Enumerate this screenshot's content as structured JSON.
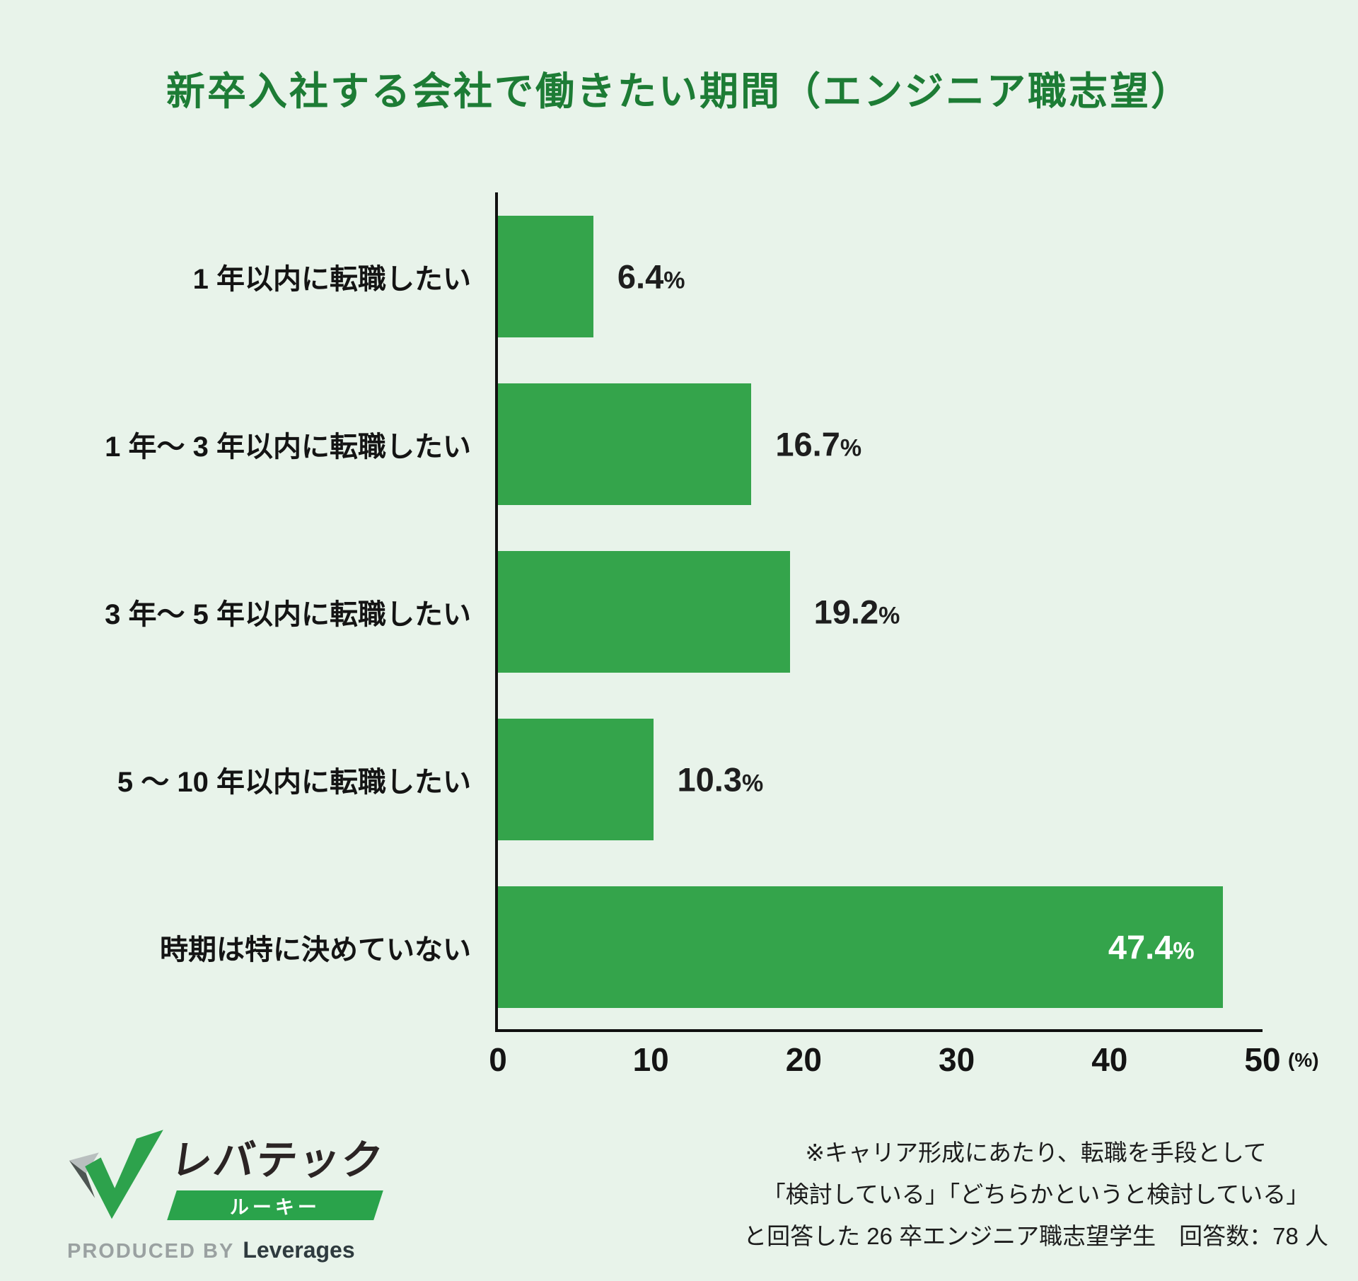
{
  "title": "新卒入社する会社で働きたい期間（エンジニア職志望）",
  "chart_data": {
    "type": "bar",
    "orientation": "horizontal",
    "categories": [
      "1 年以内に転職したい",
      "1 年～ 3 年以内に転職したい",
      "3 年～ 5 年以内に転職したい",
      "5 ～ 10 年以内に転職したい",
      "時期は特に決めていない"
    ],
    "values": [
      6.4,
      16.7,
      19.2,
      10.3,
      47.4
    ],
    "value_labels": [
      "6.4",
      "16.7",
      "19.2",
      "10.3",
      "47.4"
    ],
    "value_suffix": "%",
    "value_label_inside": [
      false,
      false,
      false,
      false,
      true
    ],
    "xlim": [
      0,
      50
    ],
    "x_ticks": [
      0,
      10,
      20,
      30,
      40,
      50
    ],
    "x_unit": "(%)",
    "bar_color": "#34a44b",
    "grid": false,
    "legend": false
  },
  "footer": {
    "logo": {
      "brand": "レバテック",
      "sub_brand": "ルーキー",
      "produced_by": "PRODUCED BY",
      "company": "Leverages",
      "banner_color": "#2aa34b"
    },
    "note_lines": [
      "※キャリア形成にあたり、転職を手段として",
      "「検討している」「どちらかというと検討している」",
      "と回答した 26 卒エンジニア職志望学生　回答数：78 人"
    ]
  },
  "colors": {
    "background": "#e8f3ea",
    "title_green": "#1d7c35",
    "bar_green": "#34a44b",
    "axis_black": "#101010",
    "inside_value_text": "#ffffff"
  }
}
